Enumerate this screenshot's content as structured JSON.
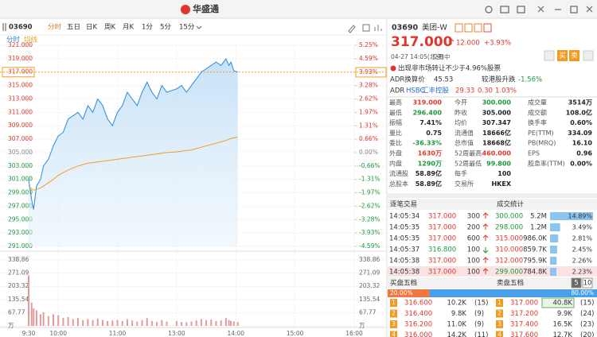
{
  "top_bar": {
    "logo": "华盛通"
  },
  "toolbar": {
    "code": "03690",
    "tabs": [
      "分时",
      "五日",
      "日K",
      "周K",
      "月K",
      "1分",
      "5分",
      "15分"
    ],
    "legend": [
      "分时",
      "均线"
    ]
  },
  "chart_data": [
    {
      "type": "line",
      "x": [
        0,
        3,
        5,
        8,
        12,
        15,
        20,
        25,
        30,
        35,
        40,
        45,
        50,
        55,
        60,
        65,
        70,
        75,
        80,
        85,
        90,
        95,
        100,
        105,
        110,
        115,
        120,
        125,
        130,
        135,
        140,
        150,
        155,
        160,
        165,
        170,
        175,
        180,
        185,
        190,
        195,
        200,
        203,
        205,
        208,
        212
      ],
      "series": [
        {
          "name": "分时",
          "color": "#2a8ae0",
          "values": [
            301,
            298,
            296.5,
            300,
            301,
            303,
            304,
            306,
            307.5,
            308,
            310,
            310.5,
            311,
            310,
            312,
            311,
            313,
            312,
            310,
            309,
            311,
            312,
            314,
            313,
            312,
            314,
            315.5,
            314,
            313,
            315,
            314,
            314.5,
            315,
            314,
            315,
            316,
            317,
            317.5,
            318,
            318.5,
            318,
            319,
            318,
            318.5,
            317.2,
            317
          ]
        },
        {
          "name": "均线",
          "color": "#f0a020",
          "values": [
            300,
            299.6,
            299.4,
            299.5,
            299.7,
            300,
            300.5,
            301,
            301.6,
            302,
            302.4,
            302.7,
            303,
            303.2,
            303.4,
            303.5,
            303.6,
            303.7,
            303.8,
            303.9,
            304,
            304.1,
            304.2,
            304.3,
            304.4,
            304.5,
            304.6,
            304.7,
            304.8,
            304.9,
            305,
            305.1,
            305.2,
            305.3,
            305.4,
            305.6,
            305.8,
            306,
            306.2,
            306.4,
            306.6,
            306.8,
            307,
            307.1,
            307.2,
            307.3
          ]
        }
      ],
      "xlim": [
        0,
        330
      ],
      "xticks": [
        {
          "value": 0,
          "label": "9:30"
        },
        {
          "value": 30,
          "label": "10:00"
        },
        {
          "value": 90,
          "label": "11:00"
        },
        {
          "value": 150,
          "label": "13:00"
        },
        {
          "value": 210,
          "label": "14:00"
        },
        {
          "value": 270,
          "label": "15:00"
        },
        {
          "value": 330,
          "label": "16:00"
        }
      ],
      "ylim": [
        291,
        321
      ],
      "yticks": [
        {
          "value": 321,
          "label": "321.000"
        },
        {
          "value": 319,
          "label": "319.000"
        },
        {
          "value": 317,
          "label": "317.000"
        },
        {
          "value": 315,
          "label": "315.000"
        },
        {
          "value": 313,
          "label": "313.000"
        },
        {
          "value": 311,
          "label": "311.000"
        },
        {
          "value": 309,
          "label": "309.000"
        },
        {
          "value": 307,
          "label": "307.000"
        },
        {
          "value": 305,
          "label": "305.000"
        },
        {
          "value": 303,
          "label": "303.000"
        },
        {
          "value": 301,
          "label": "301.000"
        },
        {
          "value": 299,
          "label": "299.000"
        },
        {
          "value": 297,
          "label": "297.000"
        },
        {
          "value": 295,
          "label": "295.000"
        },
        {
          "value": 293,
          "label": "293.000"
        },
        {
          "value": 291,
          "label": "291.000"
        }
      ],
      "y2lim": [
        -4.59,
        5.25
      ],
      "y2ticks": [
        {
          "value": 5.25,
          "label": "5.25%"
        },
        {
          "value": 4.59,
          "label": "4.59%"
        },
        {
          "value": 3.93,
          "label": "3.93%"
        },
        {
          "value": 3.28,
          "label": "3.28%"
        },
        {
          "value": 2.62,
          "label": "2.62%"
        },
        {
          "value": 1.97,
          "label": "1.97%"
        },
        {
          "value": 1.31,
          "label": "1.31%"
        },
        {
          "value": 0.66,
          "label": "0.66%"
        },
        {
          "value": 0,
          "label": "0.00%"
        },
        {
          "value": -0.66,
          "label": "-0.66%"
        },
        {
          "value": -1.31,
          "label": "-1.31%"
        },
        {
          "value": -1.97,
          "label": "-1.97%"
        },
        {
          "value": -2.62,
          "label": "-2.62%"
        },
        {
          "value": -3.28,
          "label": "-3.28%"
        },
        {
          "value": -3.93,
          "label": "-3.93%"
        },
        {
          "value": -4.59,
          "label": "-4.59%"
        }
      ],
      "grid": true
    },
    {
      "type": "bar",
      "color": "#e59a9a",
      "x": [
        0,
        3,
        5,
        8,
        12,
        15,
        20,
        25,
        30,
        35,
        40,
        45,
        50,
        55,
        60,
        65,
        70,
        75,
        80,
        85,
        90,
        95,
        100,
        105,
        110,
        115,
        120,
        125,
        130,
        135,
        140,
        150,
        155,
        160,
        165,
        170,
        175,
        180,
        185,
        190,
        195,
        200,
        203,
        205,
        208,
        212
      ],
      "values": [
        260,
        120,
        90,
        80,
        60,
        70,
        50,
        60,
        55,
        40,
        45,
        35,
        40,
        30,
        35,
        30,
        38,
        30,
        25,
        28,
        30,
        25,
        35,
        28,
        22,
        30,
        40,
        25,
        20,
        30,
        22,
        25,
        20,
        18,
        22,
        28,
        35,
        30,
        32,
        25,
        28,
        40,
        30,
        25,
        22,
        20
      ],
      "ylim": [
        0,
        338.86
      ],
      "yticks": [
        {
          "value": 338.86,
          "label": "338.86"
        },
        {
          "value": 271.09,
          "label": "271.09"
        },
        {
          "value": 203.32,
          "label": "203.32"
        },
        {
          "value": 135.54,
          "label": "135.54"
        },
        {
          "value": 67.77,
          "label": "67.77"
        },
        {
          "value": 0,
          "label": "万"
        }
      ]
    }
  ],
  "quote": {
    "code": "03690",
    "name": "美团-W",
    "price": "317.000",
    "change": "12.000",
    "pct": "+3.93%",
    "time": "04-27 14:05(北京)",
    "status": "交易中",
    "actions": [
      "买",
      "卖"
    ],
    "notice": "出现非市场转让不少于4.96%股票",
    "adr_label": "ADR换算价",
    "adr_value": "45.53",
    "vs_label": "较港股升跌",
    "vs_value": "-1.56%",
    "adr_row": [
      "ADR",
      "HSBC",
      "汇丰控股",
      "29.33",
      "0.30",
      "1.03%"
    ]
  },
  "stats": [
    [
      [
        "最高",
        "319.000"
      ],
      [
        "今开",
        "300.000"
      ],
      [
        "成交量",
        "3514万"
      ]
    ],
    [
      [
        "最低",
        "296.400"
      ],
      [
        "昨收",
        "305.000"
      ],
      [
        "成交额",
        "108.0亿"
      ]
    ],
    [
      [
        "振幅",
        "7.41%"
      ],
      [
        "均价",
        "307.347"
      ],
      [
        "换手率",
        "0.60%"
      ]
    ],
    [
      [
        "量比",
        "0.75"
      ],
      [
        "流通值",
        "18666亿"
      ],
      [
        "PE(TTM)",
        "334.09"
      ]
    ],
    [
      [
        "委比",
        "-36.33%"
      ],
      [
        "总市值",
        "18668亿"
      ],
      [
        "PB(MRQ)",
        "16.10"
      ]
    ],
    [
      [
        "外盘",
        "1630万"
      ],
      [
        "52周最高",
        "460.000"
      ],
      [
        "EPS",
        "0.96"
      ]
    ],
    [
      [
        "内盘",
        "1290万"
      ],
      [
        "52周最低",
        "99.800"
      ],
      [
        "股息率(TTM)",
        "0.00%"
      ]
    ],
    [
      [
        "流通股",
        "58.89亿"
      ],
      [
        "每手",
        "100"
      ]
    ],
    [
      [
        "总股本",
        "58.89亿"
      ],
      [
        "交易所",
        "HKEX"
      ]
    ]
  ],
  "trades": {
    "title": "逐笔交易",
    "rows": [
      [
        "14:05:34",
        "317.000",
        "300",
        "up"
      ],
      [
        "14:05:35",
        "317.000",
        "200",
        "up"
      ],
      [
        "14:05:35",
        "317.000",
        "600",
        "up"
      ],
      [
        "14:05:37",
        "316.800",
        "100",
        "down"
      ],
      [
        "14:05:38",
        "317.000",
        "100",
        "up"
      ],
      [
        "14:05:38",
        "317.000",
        "100",
        "up"
      ]
    ]
  },
  "deal_stats": {
    "title": "成交统计",
    "rows": [
      {
        "price": "300.000",
        "volume": "5.2M",
        "share": 14.89,
        "share_label": "14.89%"
      },
      {
        "price": "298.000",
        "volume": "1.2M",
        "share": 3.49,
        "share_label": "3.49%"
      },
      {
        "price": "315.000",
        "volume": "986.0K",
        "share": 2.81,
        "share_label": "2.81%"
      },
      {
        "price": "310.000",
        "volume": "859.7K",
        "share": 2.45,
        "share_label": "2.45%"
      },
      {
        "price": "312.000",
        "volume": "795.9K",
        "share": 2.26,
        "share_label": "2.26%"
      },
      {
        "price": "299.000",
        "volume": "784.8K",
        "share": 2.23,
        "share_label": "2.23%"
      }
    ]
  },
  "order_book": {
    "buy_title": "买盘五档",
    "sell_title": "卖盘五档",
    "levels": [
      "5",
      "10"
    ],
    "buy_ratio": 20,
    "buy_ratio_label": "20.00%",
    "sell_ratio": 80,
    "sell_ratio_label": "80.00%",
    "buy": [
      [
        "1",
        "316.600",
        "10.2K",
        "(15)"
      ],
      [
        "2",
        "316.400",
        "9.8K",
        "(9)"
      ],
      [
        "3",
        "316.200",
        "11.0K",
        "(9)"
      ],
      [
        "4",
        "316.000",
        "14.2K",
        "(11)"
      ]
    ],
    "sell": [
      [
        "1",
        "317.000",
        "40.8K",
        "(15)"
      ],
      [
        "2",
        "317.200",
        "9.9K",
        "(24)"
      ],
      [
        "3",
        "317.400",
        "16.5K",
        "(23)"
      ],
      [
        "4",
        "317.600",
        "12.7K",
        "(20)"
      ]
    ]
  }
}
